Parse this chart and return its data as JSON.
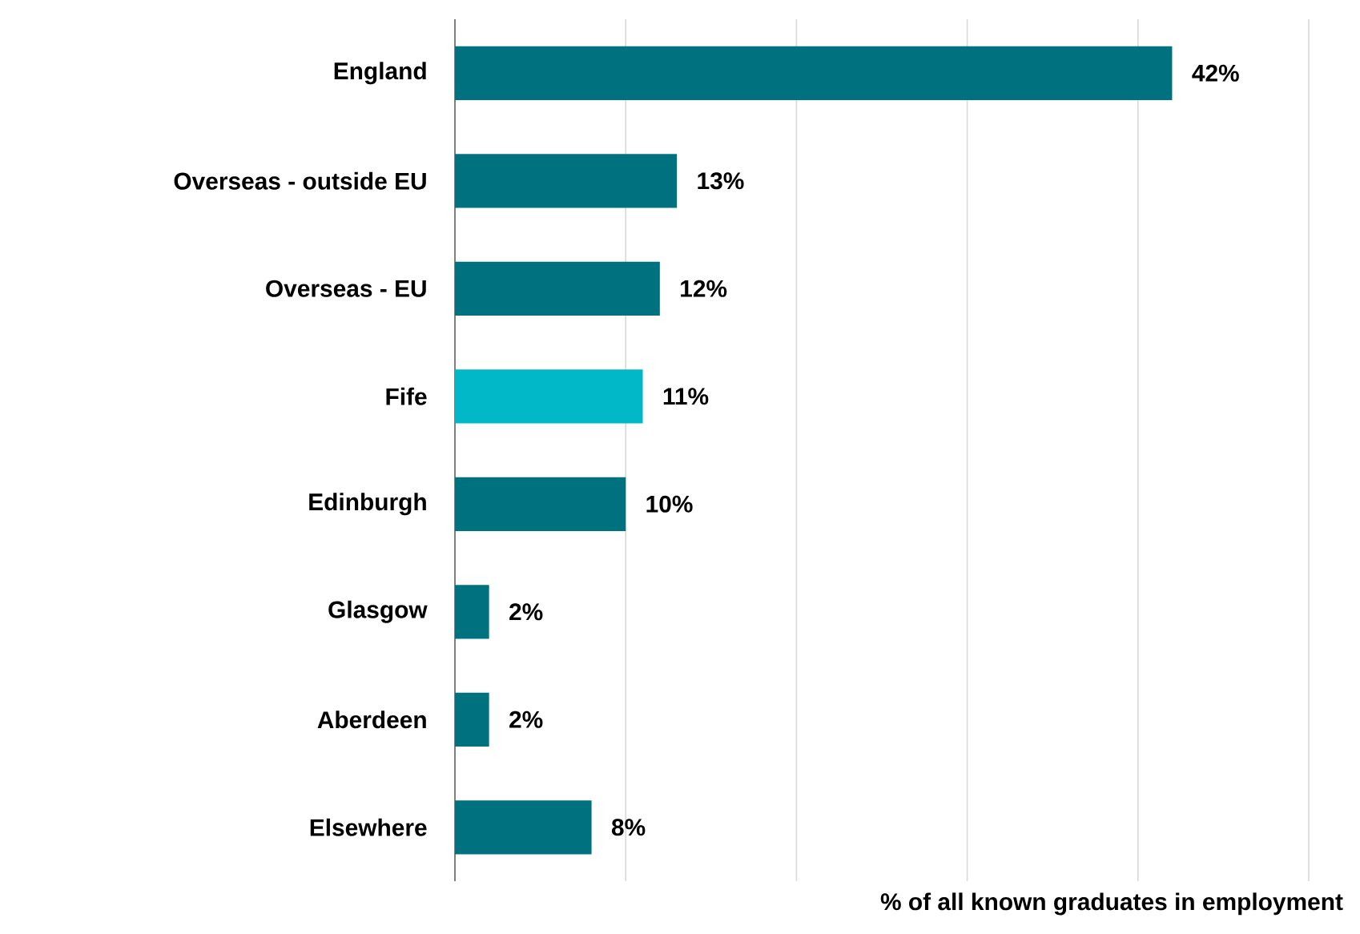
{
  "chart_data": {
    "type": "bar",
    "orientation": "horizontal",
    "xlabel": "% of all known graduates in employment",
    "categories": [
      "England",
      "Overseas - outside EU",
      "Overseas - EU",
      "Fife",
      "Edinburgh",
      "Glasgow",
      "Aberdeen",
      "Elsewhere"
    ],
    "values": [
      42,
      13,
      12,
      11,
      10,
      2,
      2,
      8
    ],
    "value_labels": [
      "42%",
      "13%",
      "12%",
      "11%",
      "10%",
      "2%",
      "2%",
      "8%"
    ],
    "colors": [
      "#00727f",
      "#00727f",
      "#00727f",
      "#00b8c8",
      "#00727f",
      "#00727f",
      "#00727f",
      "#00727f"
    ],
    "xlim": [
      0,
      50
    ],
    "xticks": [
      {
        "value": 0,
        "label": null
      },
      {
        "value": 10,
        "label": null
      },
      {
        "value": 20,
        "label": null
      },
      {
        "value": 30,
        "label": null
      },
      {
        "value": 40,
        "label": null
      },
      {
        "value": 50,
        "label": null
      }
    ],
    "grid": "x",
    "tick_labels": "y"
  }
}
